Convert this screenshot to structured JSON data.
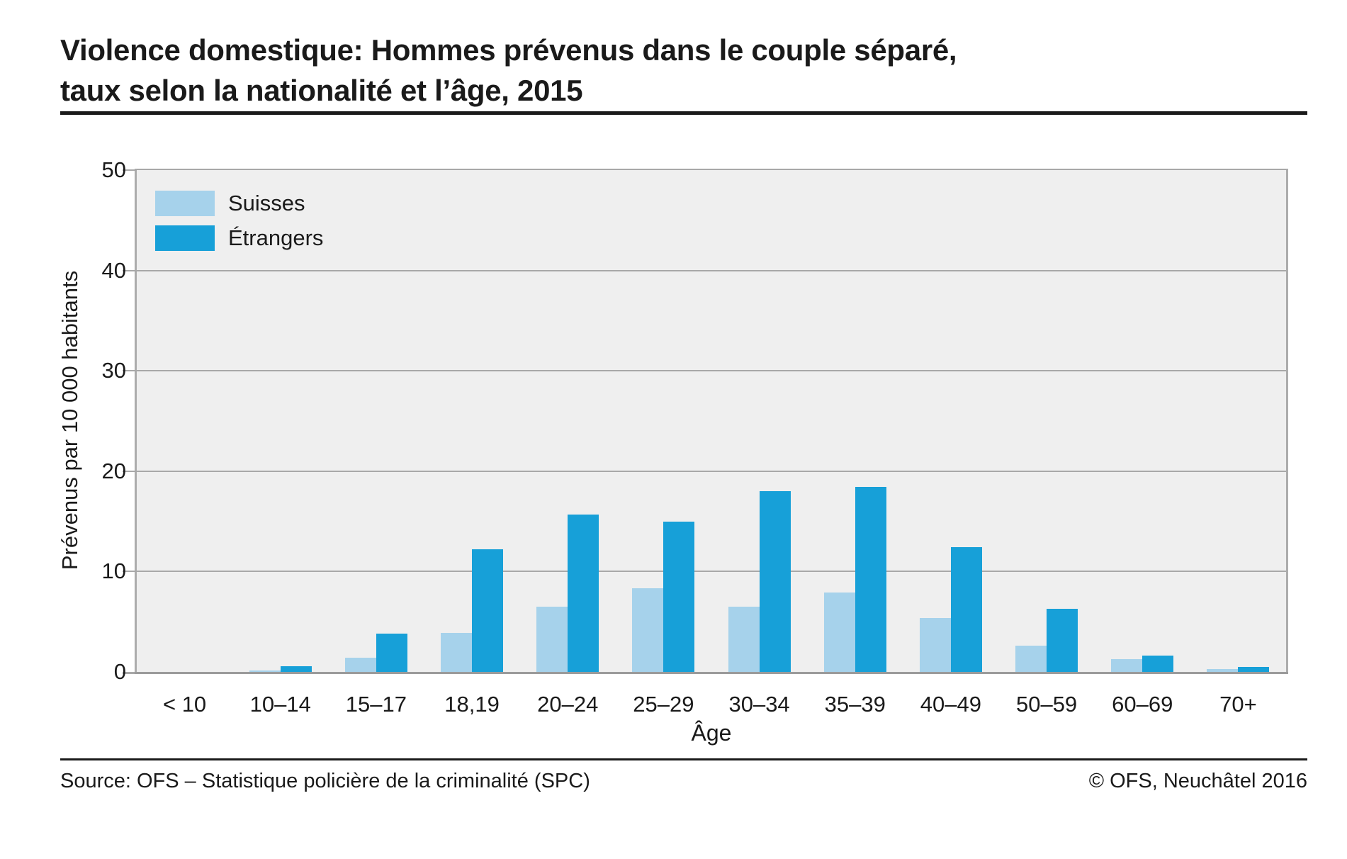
{
  "page": {
    "title_line1": "Violence domestique: Hommes prévenus dans le couple séparé,",
    "title_line2": "taux selon la nationalité et l’âge, 2015",
    "source": "Source: OFS – Statistique policière de la criminalité (SPC)",
    "copyright": "© OFS, Neuchâtel 2016"
  },
  "chart_data": {
    "type": "bar",
    "title": "Violence domestique: Hommes prévenus dans le couple séparé, taux selon la nationalité et l’âge, 2015",
    "xlabel": "Âge",
    "ylabel": "Prévenus par 10 000 habitants",
    "ylim": [
      0,
      50
    ],
    "yticks": [
      0,
      10,
      20,
      30,
      40,
      50
    ],
    "grid": true,
    "legend_position": "upper-left-inside",
    "plot_background": "#EFEFEF",
    "gridline_color": "#A8A8A8",
    "categories": [
      "< 10",
      "10–14",
      "15–17",
      "18,19",
      "20–24",
      "25–29",
      "30–34",
      "35–39",
      "40–49",
      "50–59",
      "60–69",
      "70+"
    ],
    "series": [
      {
        "name": "Suisses",
        "color": "#A6D2EB",
        "values": [
          0,
          0.15,
          1.4,
          3.9,
          6.5,
          8.3,
          6.5,
          7.9,
          5.4,
          2.6,
          1.3,
          0.3
        ]
      },
      {
        "name": "Étrangers",
        "color": "#17A0D8",
        "values": [
          0,
          0.6,
          3.8,
          12.2,
          15.7,
          15.0,
          18.0,
          18.4,
          12.4,
          6.3,
          1.6,
          0.5
        ]
      }
    ]
  }
}
